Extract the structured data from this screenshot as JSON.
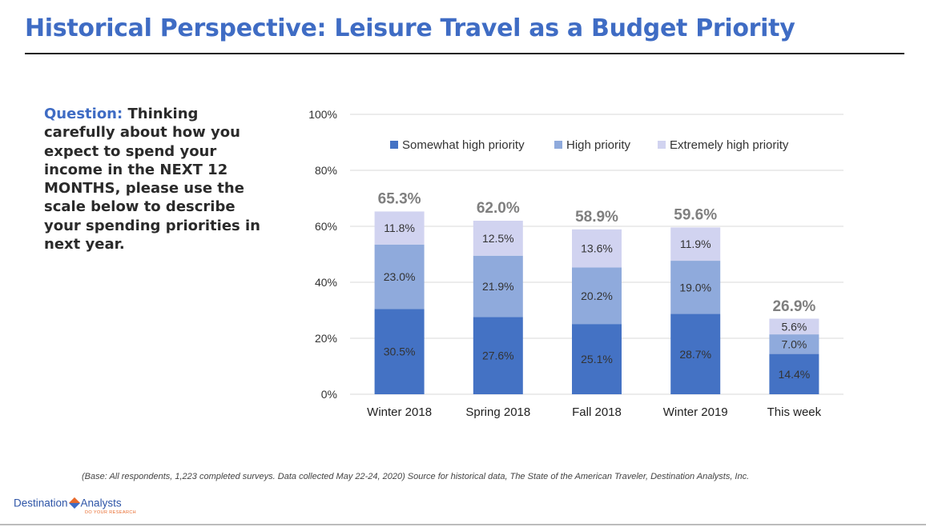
{
  "header": {
    "title": "Historical Perspective: Leisure Travel as a Budget Priority"
  },
  "question": {
    "label": "Question:",
    "text": "Thinking carefully about how you expect to spend your income in the NEXT 12 MONTHS, please use the scale below to describe your spending priorities in next year."
  },
  "footnote": "(Base: All respondents, 1,223 completed surveys. Data collected May 22-24, 2020) Source for historical data, The State of the American Traveler, Destination Analysts, Inc.",
  "logo": {
    "left_text": "Destination",
    "right_text": "Analysts",
    "tagline": "DO YOUR RESEARCH"
  },
  "chart_data": {
    "type": "bar",
    "stacked": true,
    "categories": [
      "Winter 2018",
      "Spring 2018",
      "Fall 2018",
      "Winter 2019",
      "This week"
    ],
    "series": [
      {
        "name": "Somewhat high priority",
        "values": [
          30.5,
          27.6,
          25.1,
          28.7,
          14.4
        ],
        "labels": [
          "30.5%",
          "27.6%",
          "25.1%",
          "28.7%",
          "14.4%"
        ],
        "color": "#4472c4"
      },
      {
        "name": "High priority",
        "values": [
          23.0,
          21.9,
          20.2,
          19.0,
          7.0
        ],
        "labels": [
          "23.0%",
          "21.9%",
          "20.2%",
          "19.0%",
          "7.0%"
        ],
        "color": "#8faadc"
      },
      {
        "name": "Extremely high priority",
        "values": [
          11.8,
          12.5,
          13.6,
          11.9,
          5.6
        ],
        "labels": [
          "11.8%",
          "12.5%",
          "13.6%",
          "11.9%",
          "5.6%"
        ],
        "color": "#d1d3f0"
      }
    ],
    "totals": [
      65.3,
      62.0,
      58.9,
      59.6,
      26.9
    ],
    "total_labels": [
      "65.3%",
      "62.0%",
      "58.9%",
      "59.6%",
      "26.9%"
    ],
    "ylim": [
      0,
      100
    ],
    "yticks": [
      0,
      20,
      40,
      60,
      80,
      100
    ],
    "ytick_labels": [
      "0%",
      "20%",
      "40%",
      "60%",
      "80%",
      "100%"
    ],
    "grid": true,
    "legend_position": "top-center",
    "colors": {
      "total_label": "#7f7f7f",
      "grid": "#d9d9d9",
      "axis_text": "#333333"
    }
  }
}
